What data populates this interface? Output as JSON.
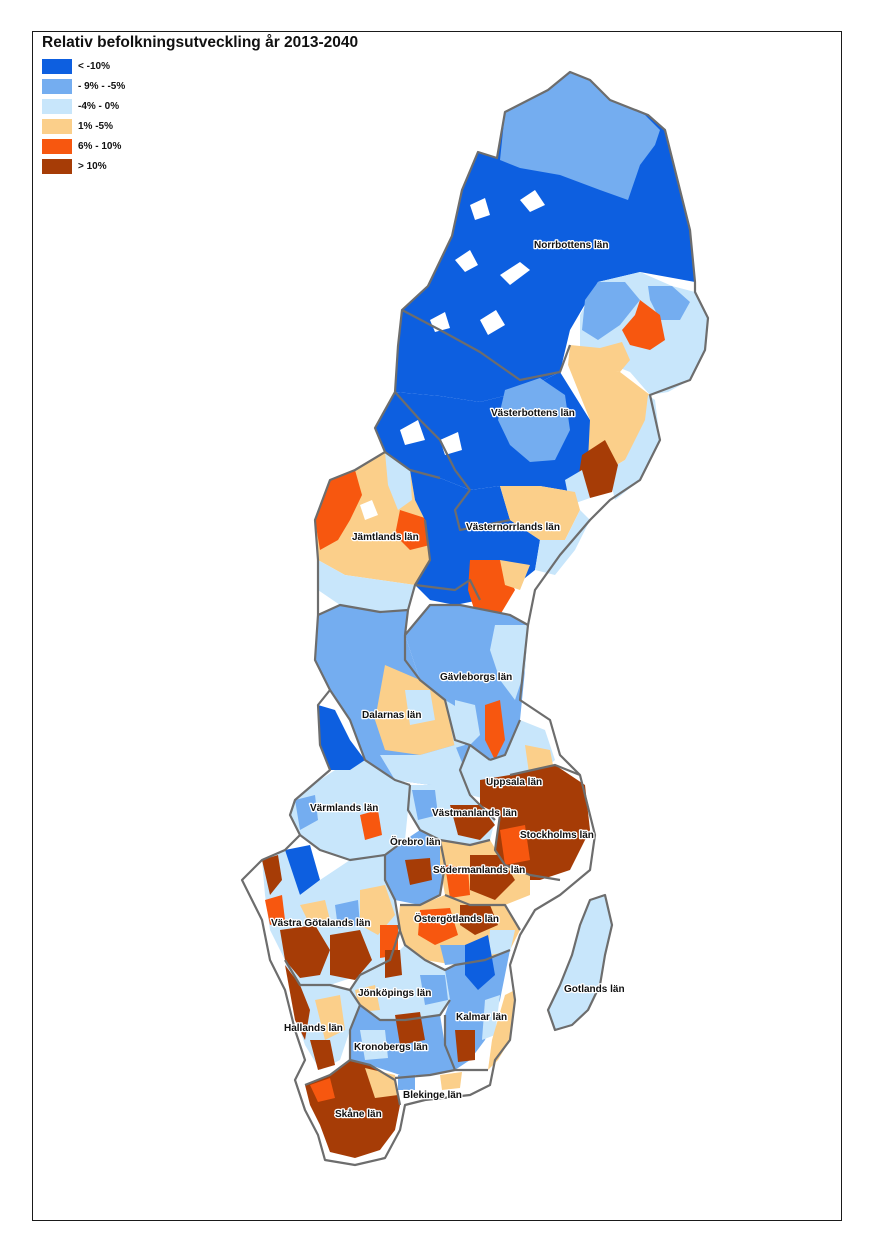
{
  "map": {
    "title": "Relativ befolkningsutveckling år 2013-2040",
    "colors": {
      "lt_m10": "#0d5fe0",
      "m9_m5": "#74adf0",
      "m4_0": "#c8e6fb",
      "p1_5": "#fbcf8a",
      "p6_10": "#f7570f",
      "gt_10": "#a63c06",
      "border": "#6d6d6d"
    },
    "legend": [
      {
        "label": "< -10%",
        "color": "#0d5fe0"
      },
      {
        "label": "- 9% - -5%",
        "color": "#74adf0"
      },
      {
        "label": "-4% - 0%",
        "color": "#c8e6fb"
      },
      {
        "label": "1% -5%",
        "color": "#fbcf8a"
      },
      {
        "label": "6% - 10%",
        "color": "#f7570f"
      },
      {
        "label": "> 10%",
        "color": "#a63c06"
      }
    ],
    "counties": {
      "norrbotten": "Norrbottens län",
      "vasterbotten": "Västerbottens län",
      "jamtland": "Jämtlands län",
      "vasternorrland": "Västernorrlands län",
      "gavleborg": "Gävleborgs län",
      "dalarna": "Dalarnas län",
      "uppsala": "Uppsala län",
      "varmland": "Värmlands län",
      "vastmanland": "Västmanlands län",
      "stockholm": "Stockholms län",
      "orebro": "Örebro län",
      "sodermanland": "Södermanlands län",
      "vastra_gotaland": "Västra Götalands län",
      "ostergotland": "Östergötlands län",
      "jonkoping": "Jönköpings län",
      "gotland": "Gotlands län",
      "kalmar": "Kalmar län",
      "halland": "Hallands län",
      "kronoberg": "Kronobergs län",
      "blekinge": "Blekinge län",
      "skane": "Skåne län"
    }
  }
}
